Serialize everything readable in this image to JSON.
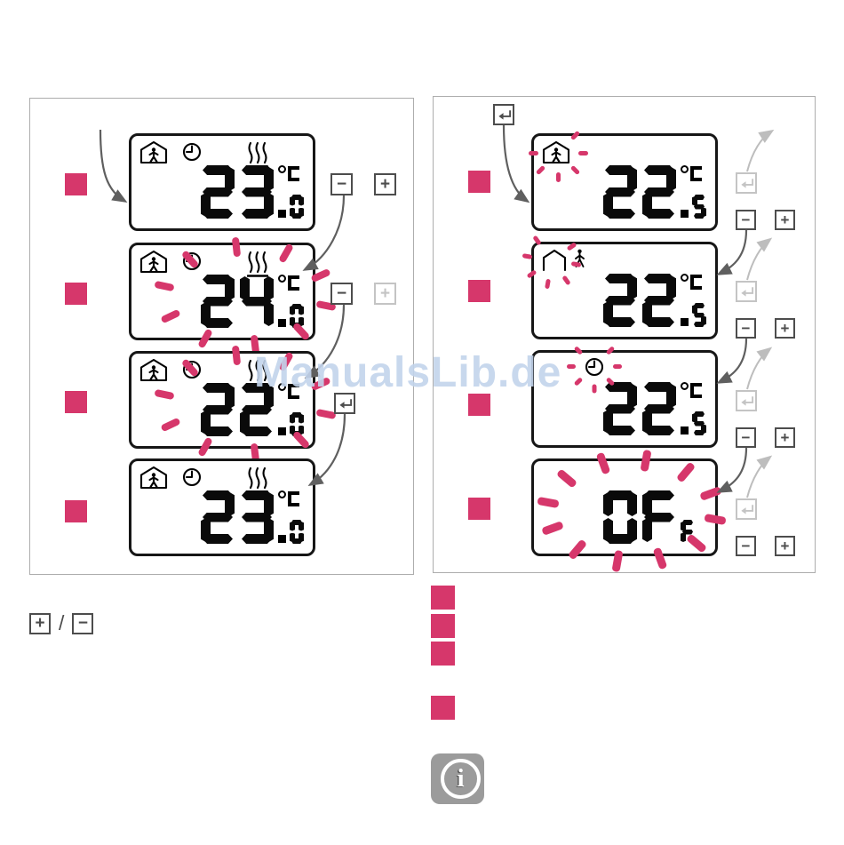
{
  "watermark": {
    "text": "ManualsLib.de",
    "color": "#c3d4ec"
  },
  "colors": {
    "blink_pink": "#d6376b",
    "button_dark": "#4d4d4d",
    "button_disabled": "#c4c4c4",
    "panel_border": "#adadad",
    "lcd_border": "#161616",
    "arrow_dark": "#5f5f5f",
    "arrow_light": "#bdbdbd",
    "info_gray": "#9b9b9b"
  },
  "controls": {
    "minus": "−",
    "plus": "+",
    "enter_icon": "return-arrow"
  },
  "left_panel": {
    "displays": [
      {
        "value": "23.0",
        "int": "23",
        "frac": "0",
        "dot": ".",
        "unit": "°C",
        "icons": [
          "occupied-house",
          "clock",
          "heating"
        ],
        "blink": "none"
      },
      {
        "value": "24.0",
        "int": "24",
        "frac": "0",
        "dot": ".",
        "unit": "°C",
        "icons": [
          "occupied-house",
          "clock",
          "heating"
        ],
        "blink": "value"
      },
      {
        "value": "22.0",
        "int": "22",
        "frac": "0",
        "dot": ".",
        "unit": "°C",
        "icons": [
          "occupied-house",
          "clock",
          "heating"
        ],
        "blink": "value"
      },
      {
        "value": "23.0",
        "int": "23",
        "frac": "0",
        "dot": ".",
        "unit": "°C",
        "icons": [
          "occupied-house",
          "clock",
          "heating"
        ],
        "blink": "none"
      }
    ],
    "buttons": [
      "minus",
      "plus",
      "minus",
      "plus-disabled",
      "enter"
    ]
  },
  "right_panel": {
    "displays": [
      {
        "value": "22.5",
        "int": "22",
        "frac": "5",
        "dot": ".",
        "unit": "°C",
        "icons": [
          "occupied-house"
        ],
        "blink": "occupied-house-icon"
      },
      {
        "value": "22.5",
        "int": "22",
        "frac": "5",
        "dot": ".",
        "unit": "°C",
        "icons": [
          "empty-house",
          "walking-person"
        ],
        "blink": "empty-house-icon"
      },
      {
        "value": "22.5",
        "int": "22",
        "frac": "5",
        "dot": ".",
        "unit": "°C",
        "icons": [
          "clock"
        ],
        "blink": "clock-icon"
      },
      {
        "value": "OFF",
        "int": "OF",
        "frac": "F",
        "dot": "",
        "unit": "",
        "icons": [],
        "blink": "value"
      }
    ],
    "buttons": [
      "enter",
      "enter-disabled",
      "minus",
      "plus",
      "enter-disabled",
      "minus",
      "plus",
      "enter-disabled",
      "minus",
      "plus",
      "enter-disabled",
      "minus",
      "plus"
    ]
  },
  "legend": {
    "plus": "+",
    "slash": "/",
    "minus": "−"
  },
  "footer": {
    "info_icon": "info"
  }
}
